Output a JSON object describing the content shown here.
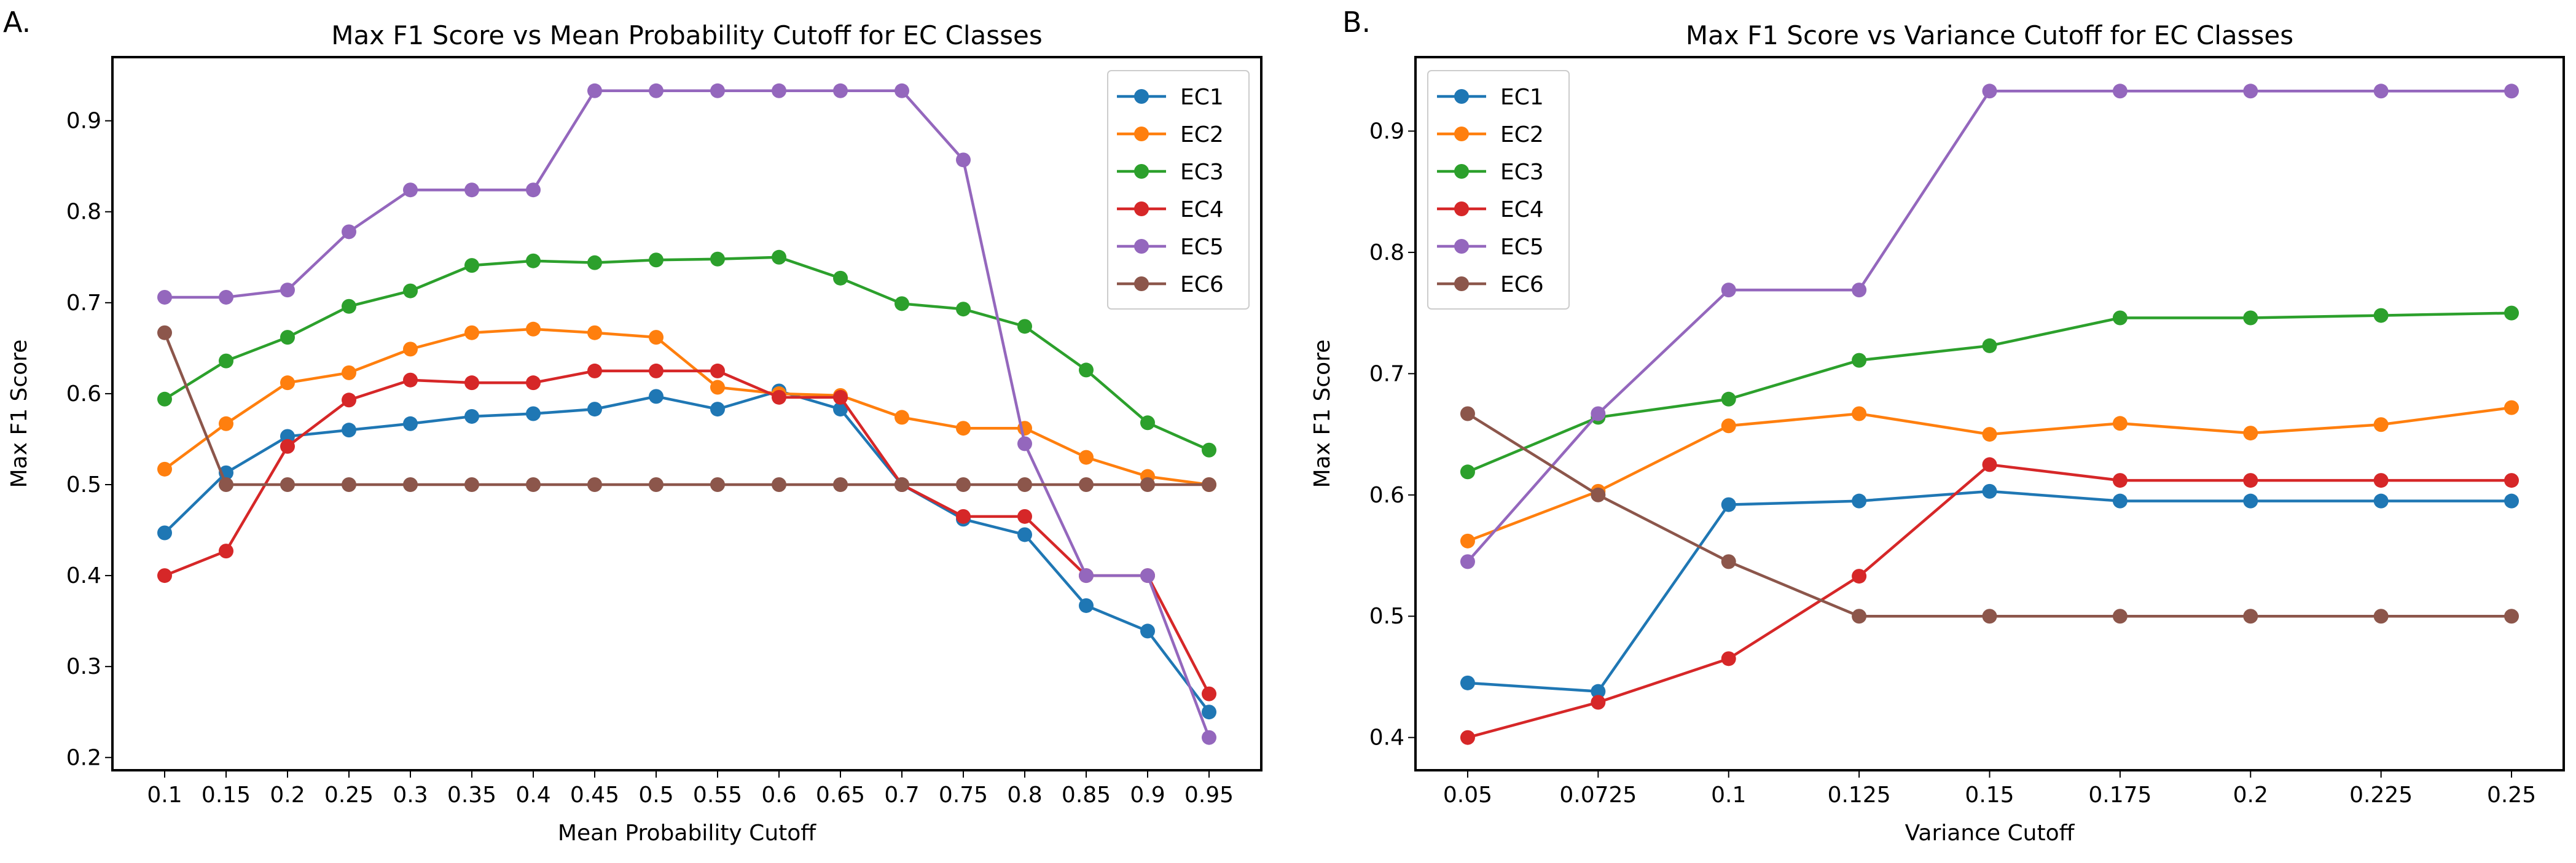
{
  "chart_data": [
    {
      "panel_label": "A.",
      "type": "line",
      "title": "Max F1 Score vs Mean Probability Cutoff for EC Classes",
      "xlabel": "Mean Probability Cutoff",
      "ylabel": "Max F1 Score",
      "categories": [
        "0.1",
        "0.15",
        "0.2",
        "0.25",
        "0.3",
        "0.35",
        "0.4",
        "0.45",
        "0.5",
        "0.55",
        "0.6",
        "0.65",
        "0.7",
        "0.75",
        "0.8",
        "0.85",
        "0.9",
        "0.95"
      ],
      "yticks": [
        "0.2",
        "0.3",
        "0.4",
        "0.5",
        "0.6",
        "0.7",
        "0.8",
        "0.9"
      ],
      "ylim": [
        0.186,
        0.97
      ],
      "grid": false,
      "legend_position": "top-right",
      "series": [
        {
          "name": "EC1",
          "color": "#1f77b4",
          "values": [
            0.447,
            0.513,
            0.553,
            0.56,
            0.567,
            0.575,
            0.578,
            0.583,
            0.597,
            0.583,
            0.603,
            0.583,
            0.5,
            0.462,
            0.445,
            0.367,
            0.339,
            0.25
          ]
        },
        {
          "name": "EC2",
          "color": "#ff7f0e",
          "values": [
            0.517,
            0.567,
            0.612,
            0.623,
            0.649,
            0.667,
            0.671,
            0.667,
            0.662,
            0.607,
            0.6,
            0.598,
            0.574,
            0.562,
            0.562,
            0.53,
            0.509,
            0.5
          ]
        },
        {
          "name": "EC3",
          "color": "#2ca02c",
          "values": [
            0.594,
            0.636,
            0.662,
            0.696,
            0.713,
            0.741,
            0.746,
            0.744,
            0.747,
            0.748,
            0.75,
            0.727,
            0.699,
            0.693,
            0.674,
            0.626,
            0.568,
            0.538
          ]
        },
        {
          "name": "EC4",
          "color": "#d62728",
          "values": [
            0.4,
            0.427,
            0.542,
            0.593,
            0.615,
            0.612,
            0.612,
            0.625,
            0.625,
            0.625,
            0.596,
            0.596,
            0.5,
            0.465,
            0.465,
            0.4,
            0.4,
            0.27
          ]
        },
        {
          "name": "EC5",
          "color": "#9467bd",
          "values": [
            0.706,
            0.706,
            0.714,
            0.778,
            0.824,
            0.824,
            0.824,
            0.933,
            0.933,
            0.933,
            0.933,
            0.933,
            0.933,
            0.857,
            0.545,
            0.4,
            0.4,
            0.222
          ]
        },
        {
          "name": "EC6",
          "color": "#8c564b",
          "values": [
            0.667,
            0.5,
            0.5,
            0.5,
            0.5,
            0.5,
            0.5,
            0.5,
            0.5,
            0.5,
            0.5,
            0.5,
            0.5,
            0.5,
            0.5,
            0.5,
            0.5,
            0.5
          ]
        }
      ]
    },
    {
      "panel_label": "B.",
      "type": "line",
      "title": "Max F1 Score vs Variance Cutoff for EC Classes",
      "xlabel": "Variance Cutoff",
      "ylabel": "Max F1 Score",
      "categories": [
        "0.05",
        "0.0725",
        "0.1",
        "0.125",
        "0.15",
        "0.175",
        "0.2",
        "0.225",
        "0.25"
      ],
      "yticks": [
        "0.4",
        "0.5",
        "0.6",
        "0.7",
        "0.8",
        "0.9"
      ],
      "ylim": [
        0.373,
        0.961
      ],
      "grid": false,
      "legend_position": "top-left",
      "series": [
        {
          "name": "EC1",
          "color": "#1f77b4",
          "values": [
            0.445,
            0.438,
            0.592,
            0.595,
            0.603,
            0.595,
            0.595,
            0.595,
            0.595
          ]
        },
        {
          "name": "EC2",
          "color": "#ff7f0e",
          "values": [
            0.562,
            0.603,
            0.657,
            0.667,
            0.65,
            0.659,
            0.651,
            0.658,
            0.672
          ]
        },
        {
          "name": "EC3",
          "color": "#2ca02c",
          "values": [
            0.619,
            0.664,
            0.679,
            0.711,
            0.723,
            0.746,
            0.746,
            0.748,
            0.75
          ]
        },
        {
          "name": "EC4",
          "color": "#d62728",
          "values": [
            0.4,
            0.429,
            0.465,
            0.533,
            0.625,
            0.612,
            0.612,
            0.612,
            0.612
          ]
        },
        {
          "name": "EC5",
          "color": "#9467bd",
          "values": [
            0.545,
            0.667,
            0.769,
            0.769,
            0.933,
            0.933,
            0.933,
            0.933,
            0.933
          ]
        },
        {
          "name": "EC6",
          "color": "#8c564b",
          "values": [
            0.667,
            0.6,
            0.545,
            0.5,
            0.5,
            0.5,
            0.5,
            0.5,
            0.5
          ]
        }
      ]
    }
  ]
}
